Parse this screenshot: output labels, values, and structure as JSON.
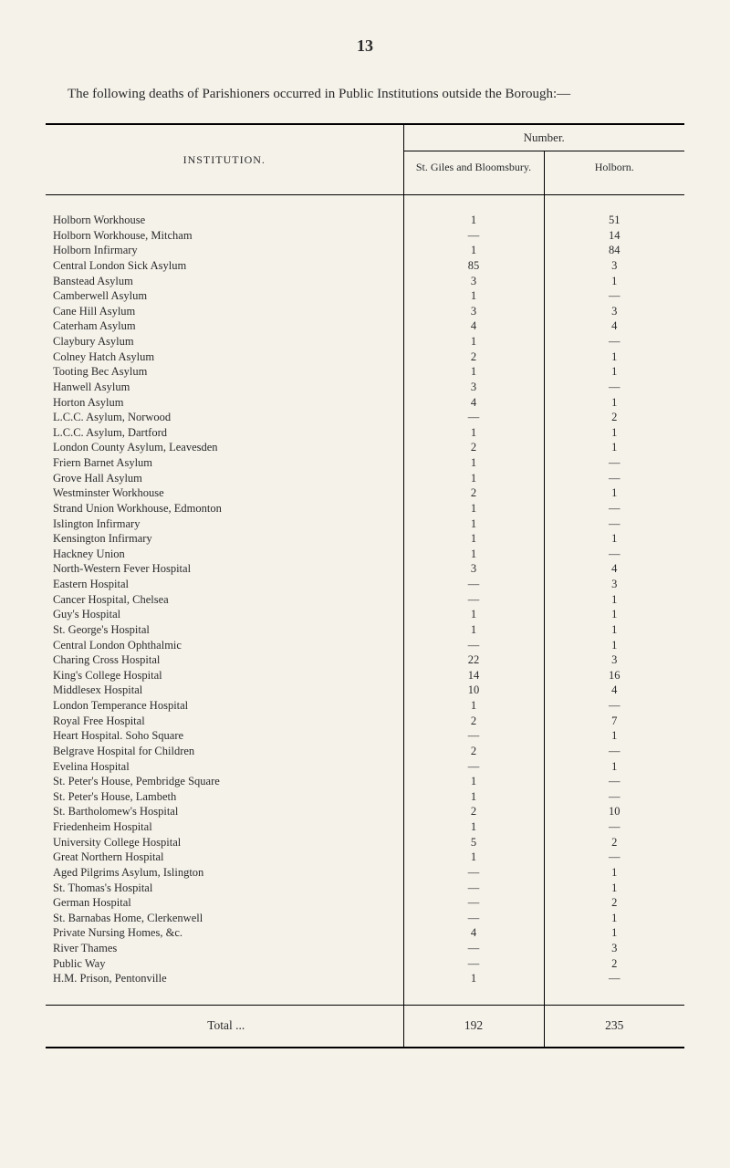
{
  "page_number": "13",
  "intro_text": "The following deaths of Parishioners occurred in Public Institutions outside the Borough:—",
  "table": {
    "header": {
      "institution": "INSTITUTION.",
      "number": "Number.",
      "col1": "St. Giles and Bloomsbury.",
      "col2": "Holborn."
    },
    "rows": [
      {
        "name": "Holborn Workhouse",
        "v1": "1",
        "v2": "51"
      },
      {
        "name": "Holborn Workhouse, Mitcham",
        "v1": "—",
        "v2": "14"
      },
      {
        "name": "Holborn Infirmary",
        "v1": "1",
        "v2": "84"
      },
      {
        "name": "Central London Sick Asylum",
        "v1": "85",
        "v2": "3"
      },
      {
        "name": "Banstead Asylum",
        "v1": "3",
        "v2": "1"
      },
      {
        "name": "Camberwell Asylum",
        "v1": "1",
        "v2": "—"
      },
      {
        "name": "Cane Hill Asylum",
        "v1": "3",
        "v2": "3"
      },
      {
        "name": "Caterham Asylum",
        "v1": "4",
        "v2": "4"
      },
      {
        "name": "Claybury Asylum",
        "v1": "1",
        "v2": "—"
      },
      {
        "name": "Colney Hatch Asylum",
        "v1": "2",
        "v2": "1"
      },
      {
        "name": "Tooting Bec Asylum",
        "v1": "1",
        "v2": "1"
      },
      {
        "name": "Hanwell Asylum",
        "v1": "3",
        "v2": "—"
      },
      {
        "name": "Horton Asylum",
        "v1": "4",
        "v2": "1"
      },
      {
        "name": "L.C.C. Asylum, Norwood",
        "v1": "—",
        "v2": "2"
      },
      {
        "name": "L.C.C. Asylum, Dartford",
        "v1": "1",
        "v2": "1"
      },
      {
        "name": "London County Asylum, Leavesden",
        "v1": "2",
        "v2": "1"
      },
      {
        "name": "Friern Barnet Asylum",
        "v1": "1",
        "v2": "—"
      },
      {
        "name": "Grove Hall Asylum",
        "v1": "1",
        "v2": "—"
      },
      {
        "name": "Westminster Workhouse",
        "v1": "2",
        "v2": "1"
      },
      {
        "name": "Strand Union Workhouse, Edmonton",
        "v1": "1",
        "v2": "—"
      },
      {
        "name": "Islington Infirmary",
        "v1": "1",
        "v2": "—"
      },
      {
        "name": "Kensington Infirmary",
        "v1": "1",
        "v2": "1"
      },
      {
        "name": "Hackney Union",
        "v1": "1",
        "v2": "—"
      },
      {
        "name": "North-Western Fever Hospital",
        "v1": "3",
        "v2": "4"
      },
      {
        "name": "Eastern Hospital",
        "v1": "—",
        "v2": "3"
      },
      {
        "name": "Cancer Hospital, Chelsea",
        "v1": "—",
        "v2": "1"
      },
      {
        "name": "Guy's Hospital",
        "v1": "1",
        "v2": "1"
      },
      {
        "name": "St. George's Hospital",
        "v1": "1",
        "v2": "1"
      },
      {
        "name": "Central London Ophthalmic",
        "v1": "—",
        "v2": "1"
      },
      {
        "name": "Charing Cross Hospital",
        "v1": "22",
        "v2": "3"
      },
      {
        "name": "King's College Hospital",
        "v1": "14",
        "v2": "16"
      },
      {
        "name": "Middlesex Hospital",
        "v1": "10",
        "v2": "4"
      },
      {
        "name": "London Temperance Hospital",
        "v1": "1",
        "v2": "—"
      },
      {
        "name": "Royal Free Hospital",
        "v1": "2",
        "v2": "7"
      },
      {
        "name": "Heart Hospital. Soho Square",
        "v1": "—",
        "v2": "1"
      },
      {
        "name": "Belgrave Hospital for Children",
        "v1": "2",
        "v2": "—"
      },
      {
        "name": "Evelina Hospital",
        "v1": "—",
        "v2": "1"
      },
      {
        "name": "St. Peter's House, Pembridge Square",
        "v1": "1",
        "v2": "—"
      },
      {
        "name": "St. Peter's House, Lambeth",
        "v1": "1",
        "v2": "—"
      },
      {
        "name": "St. Bartholomew's Hospital",
        "v1": "2",
        "v2": "10"
      },
      {
        "name": "Friedenheim Hospital",
        "v1": "1",
        "v2": "—"
      },
      {
        "name": "University College Hospital",
        "v1": "5",
        "v2": "2"
      },
      {
        "name": "Great Northern Hospital",
        "v1": "1",
        "v2": "—"
      },
      {
        "name": "Aged Pilgrims Asylum, Islington",
        "v1": "—",
        "v2": "1"
      },
      {
        "name": "St. Thomas's Hospital",
        "v1": "—",
        "v2": "1"
      },
      {
        "name": "German Hospital",
        "v1": "—",
        "v2": "2"
      },
      {
        "name": "St. Barnabas Home, Clerkenwell",
        "v1": "—",
        "v2": "1"
      },
      {
        "name": "Private Nursing Homes, &c.",
        "v1": "4",
        "v2": "1"
      },
      {
        "name": "River Thames",
        "v1": "—",
        "v2": "3"
      },
      {
        "name": "Public Way",
        "v1": "—",
        "v2": "2"
      },
      {
        "name": "H.M. Prison, Pentonville",
        "v1": "1",
        "v2": "—"
      }
    ],
    "total": {
      "label": "Total ...",
      "v1": "192",
      "v2": "235"
    }
  },
  "style": {
    "background_color": "#f5f2ea",
    "text_color": "#2a2a2a",
    "rule_color": "#000000",
    "font_family": "Georgia, 'Times New Roman', serif",
    "body_fontsize": 13,
    "pagenum_fontsize": 18,
    "intro_fontsize": 15
  }
}
